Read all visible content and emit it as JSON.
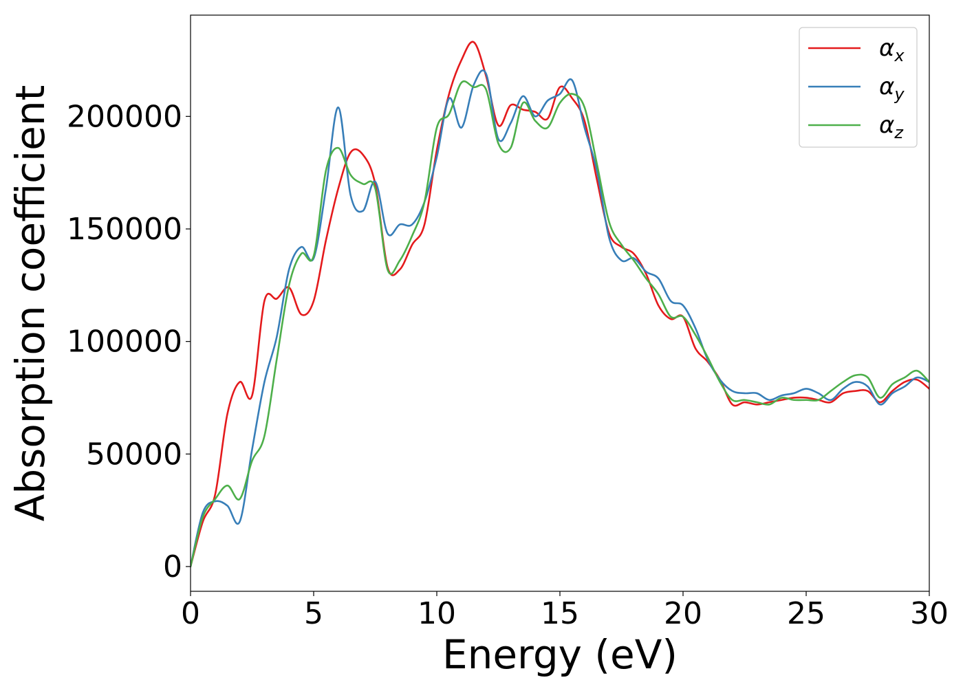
{
  "chart_data": {
    "type": "line",
    "xlabel": "Energy (eV)",
    "ylabel": "Absorption coefficient",
    "xlim": [
      0,
      30
    ],
    "ylim": [
      -11000,
      245000
    ],
    "x_ticks": [
      0,
      5,
      10,
      15,
      20,
      25,
      30
    ],
    "y_ticks": [
      0,
      50000,
      100000,
      150000,
      200000
    ],
    "grid": false,
    "legend_position": "top-right",
    "x": [
      0,
      0.5,
      1,
      1.5,
      2,
      2.5,
      3,
      3.5,
      4,
      4.5,
      5,
      5.5,
      6,
      6.5,
      7,
      7.5,
      8,
      8.5,
      9,
      9.5,
      10,
      10.5,
      11,
      11.5,
      12,
      12.5,
      13,
      13.5,
      14,
      14.5,
      15,
      15.5,
      16,
      16.5,
      17,
      17.5,
      18,
      18.5,
      19,
      19.5,
      20,
      20.5,
      21,
      21.5,
      22,
      22.5,
      23,
      23.5,
      24,
      24.5,
      25,
      25.5,
      26,
      26.5,
      27,
      27.5,
      28,
      28.5,
      29,
      29.5,
      30
    ],
    "series": [
      {
        "name": "α",
        "subscript": "x",
        "color": "#e41a1c",
        "values": [
          0,
          20000,
          32000,
          68000,
          82000,
          76000,
          118000,
          119000,
          124000,
          112000,
          118000,
          145000,
          168000,
          184000,
          183000,
          170000,
          133000,
          132000,
          143000,
          152000,
          185000,
          210000,
          225000,
          233000,
          218000,
          196000,
          205000,
          203000,
          202000,
          199000,
          213000,
          208000,
          198000,
          172000,
          148000,
          142000,
          139000,
          130000,
          116000,
          110000,
          111000,
          97000,
          91000,
          83000,
          72000,
          73000,
          72000,
          73000,
          74000,
          75000,
          75000,
          74000,
          73000,
          77000,
          78000,
          78000,
          73000,
          78000,
          82000,
          83000,
          79000
        ]
      },
      {
        "name": "α",
        "subscript": "y",
        "color": "#377eb8",
        "values": [
          0,
          24000,
          29000,
          27000,
          20000,
          52000,
          82000,
          102000,
          132000,
          142000,
          137000,
          168000,
          204000,
          165000,
          158000,
          171000,
          148000,
          152000,
          152000,
          162000,
          182000,
          208000,
          195000,
          214000,
          219000,
          190000,
          197000,
          209000,
          200000,
          207000,
          210000,
          216000,
          195000,
          176000,
          146000,
          136000,
          137000,
          131000,
          128000,
          118000,
          116000,
          106000,
          92000,
          83000,
          78000,
          77000,
          77000,
          74000,
          76000,
          77000,
          79000,
          77000,
          74000,
          79000,
          82000,
          80000,
          72000,
          77000,
          80000,
          84000,
          82000
        ]
      },
      {
        "name": "α",
        "subscript": "z",
        "color": "#4daf4a",
        "values": [
          0,
          22000,
          30000,
          36000,
          30000,
          47000,
          58000,
          92000,
          125000,
          139000,
          138000,
          176000,
          186000,
          174000,
          170000,
          168000,
          132000,
          136000,
          147000,
          162000,
          195000,
          201000,
          215000,
          213000,
          212000,
          188000,
          186000,
          206000,
          198000,
          195000,
          206000,
          210000,
          204000,
          179000,
          153000,
          143000,
          136000,
          128000,
          121000,
          111000,
          111000,
          103000,
          93000,
          82000,
          74000,
          74000,
          73000,
          72000,
          75000,
          74000,
          74000,
          74000,
          78000,
          82000,
          85000,
          84000,
          75000,
          81000,
          84000,
          87000,
          82000
        ]
      }
    ]
  }
}
